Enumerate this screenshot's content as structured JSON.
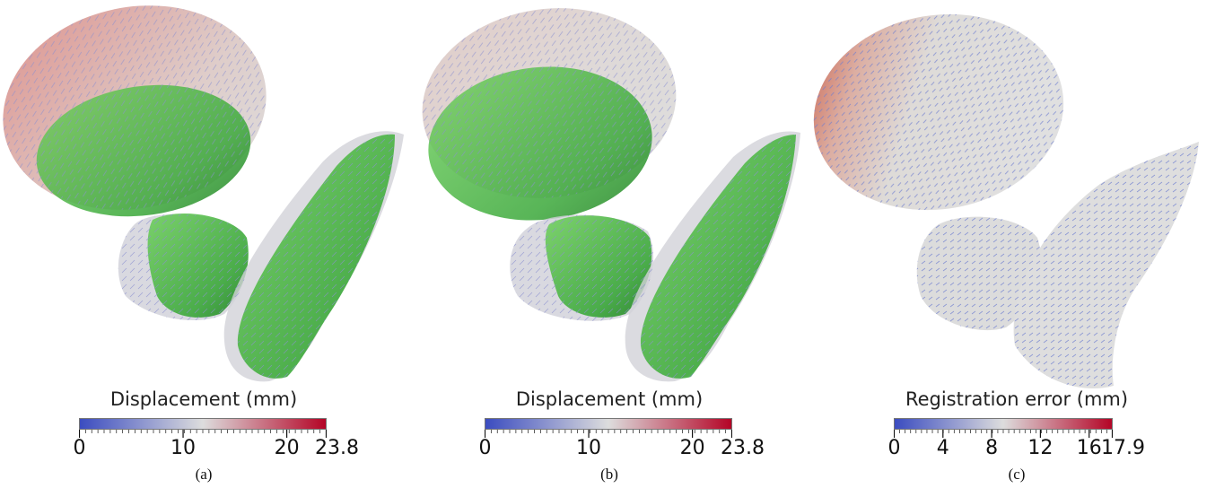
{
  "panels": [
    {
      "caption": "(a)",
      "colorbar": {
        "title": "Displacement (mm)",
        "min": 0,
        "max": 23.8,
        "tick_labels": [
          "0",
          "10",
          "20",
          "23.8"
        ],
        "tick_values": [
          0,
          10,
          20,
          23.8
        ]
      }
    },
    {
      "caption": "(b)",
      "colorbar": {
        "title": "Displacement (mm)",
        "min": 0,
        "max": 23.8,
        "tick_labels": [
          "0",
          "10",
          "20",
          "23.8"
        ],
        "tick_values": [
          0,
          10,
          20,
          23.8
        ]
      }
    },
    {
      "caption": "(c)",
      "colorbar": {
        "title": "Registration error (mm)",
        "min": 0,
        "max": 17.9,
        "tick_labels": [
          "0",
          "4",
          "8",
          "12",
          "16",
          "17.9"
        ],
        "tick_values": [
          0,
          4,
          8,
          12,
          16,
          17.9
        ]
      }
    }
  ],
  "colormap": {
    "low": "#3b4cc0",
    "mid": "#dddddd",
    "high": "#b40426"
  }
}
